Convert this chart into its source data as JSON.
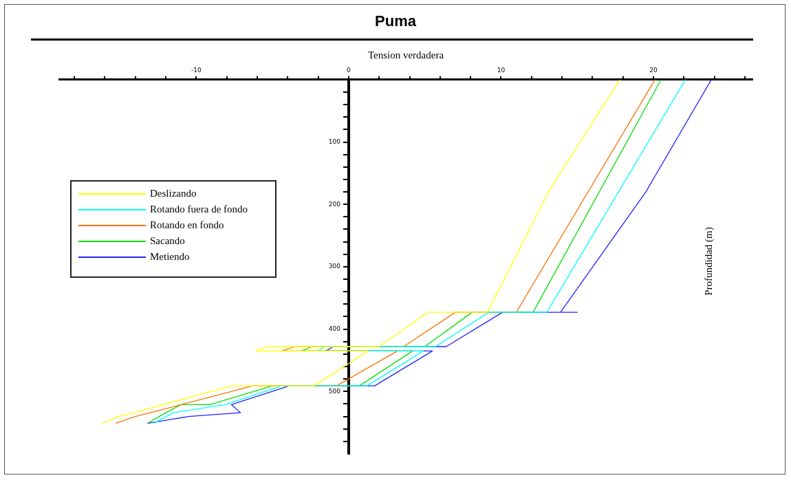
{
  "chart_data": {
    "type": "line",
    "title": "Puma",
    "xlabel": "Tension verdadera",
    "ylabel": "Profundidad (m)",
    "xlim": [
      -19,
      26.5
    ],
    "xticks": [
      {
        "value": -18,
        "label": null
      },
      {
        "value": -16,
        "label": null
      },
      {
        "value": -14,
        "label": null
      },
      {
        "value": -12,
        "label": null
      },
      -10,
      {
        "value": -8,
        "label": null
      },
      {
        "value": -6,
        "label": null
      },
      {
        "value": -4,
        "label": null
      },
      {
        "value": -2,
        "label": null
      },
      0,
      {
        "value": 2,
        "label": null
      },
      {
        "value": 4,
        "label": null
      },
      {
        "value": 6,
        "label": null
      },
      {
        "value": 8,
        "label": null
      },
      10,
      {
        "value": 12,
        "label": null
      },
      {
        "value": 14,
        "label": null
      },
      {
        "value": 16,
        "label": null
      },
      {
        "value": 18,
        "label": null
      },
      20,
      {
        "value": 22,
        "label": null
      },
      {
        "value": 24,
        "label": null
      },
      {
        "value": 26,
        "label": null
      }
    ],
    "ylim": [
      600,
      0
    ],
    "yticks": [
      {
        "value": 20,
        "label": null
      },
      {
        "value": 40,
        "label": null
      },
      {
        "value": 60,
        "label": null
      },
      {
        "value": 80,
        "label": null
      },
      100,
      {
        "value": 120,
        "label": null
      },
      {
        "value": 140,
        "label": null
      },
      {
        "value": 160,
        "label": null
      },
      {
        "value": 180,
        "label": null
      },
      200,
      {
        "value": 220,
        "label": null
      },
      {
        "value": 240,
        "label": null
      },
      {
        "value": 260,
        "label": null
      },
      {
        "value": 280,
        "label": null
      },
      300,
      {
        "value": 320,
        "label": null
      },
      {
        "value": 340,
        "label": null
      },
      {
        "value": 360,
        "label": null
      },
      {
        "value": 380,
        "label": null
      },
      400,
      {
        "value": 420,
        "label": null
      },
      {
        "value": 440,
        "label": null
      },
      {
        "value": 460,
        "label": null
      },
      {
        "value": 480,
        "label": null
      },
      500,
      {
        "value": 520,
        "label": null
      },
      {
        "value": 540,
        "label": null
      },
      {
        "value": 560,
        "label": null
      },
      {
        "value": 580,
        "label": null
      }
    ],
    "grid": false,
    "legend": "left",
    "marker": "none",
    "line_style": "solid",
    "series": [
      {
        "name": "Deslizando",
        "color": "#ffff00",
        "x": [
          17.8,
          13.2,
          9.1,
          5.2,
          2.0,
          -5.3,
          -6.1,
          1.3,
          -2.3,
          -7.7,
          -14.1,
          -15.1,
          -16.2
        ],
        "values": [
          0,
          176,
          373,
          373,
          428,
          428,
          435,
          435,
          491,
          491,
          534,
          540,
          551
        ]
      },
      {
        "name": "Rotando fuera de fondo",
        "color": "#00ffff",
        "x": [
          22.1,
          13.0,
          9.2,
          5.7,
          -1.6,
          -2.0,
          4.9,
          1.2,
          -4.4,
          -8.1,
          -11.5,
          -12.8
        ],
        "values": [
          0,
          373,
          373,
          428,
          428,
          435,
          435,
          491,
          491,
          521,
          534,
          551
        ]
      },
      {
        "name": "Rotando en fondo",
        "color": "#ff7000",
        "x": [
          20.1,
          11.0,
          7.0,
          3.6,
          -3.5,
          -4.4,
          3.2,
          -0.8,
          -6.3,
          -13.0,
          -14.0,
          -15.3
        ],
        "values": [
          0,
          373,
          373,
          428,
          428,
          435,
          435,
          491,
          491,
          534,
          540,
          551
        ]
      },
      {
        "name": "Sacando",
        "color": "#00e000",
        "x": [
          20.5,
          12.1,
          8.1,
          5.0,
          -2.4,
          -3.1,
          4.2,
          0.7,
          -5.0,
          -9.1,
          -11.0,
          -12.0,
          -13.2
        ],
        "values": [
          0,
          373,
          373,
          428,
          428,
          435,
          435,
          491,
          491,
          521,
          521,
          534,
          551
        ]
      },
      {
        "name": "Metiendo",
        "color": "#2020ff",
        "x": [
          23.8,
          19.5,
          13.9,
          15.0,
          10.1,
          6.4,
          -1.0,
          -1.5,
          5.5,
          1.7,
          -3.9,
          -7.7,
          -7.1,
          -10.5,
          -13.2
        ],
        "values": [
          0,
          180,
          373,
          373,
          373,
          428,
          428,
          435,
          435,
          491,
          491,
          521,
          534,
          540,
          551
        ]
      }
    ]
  }
}
